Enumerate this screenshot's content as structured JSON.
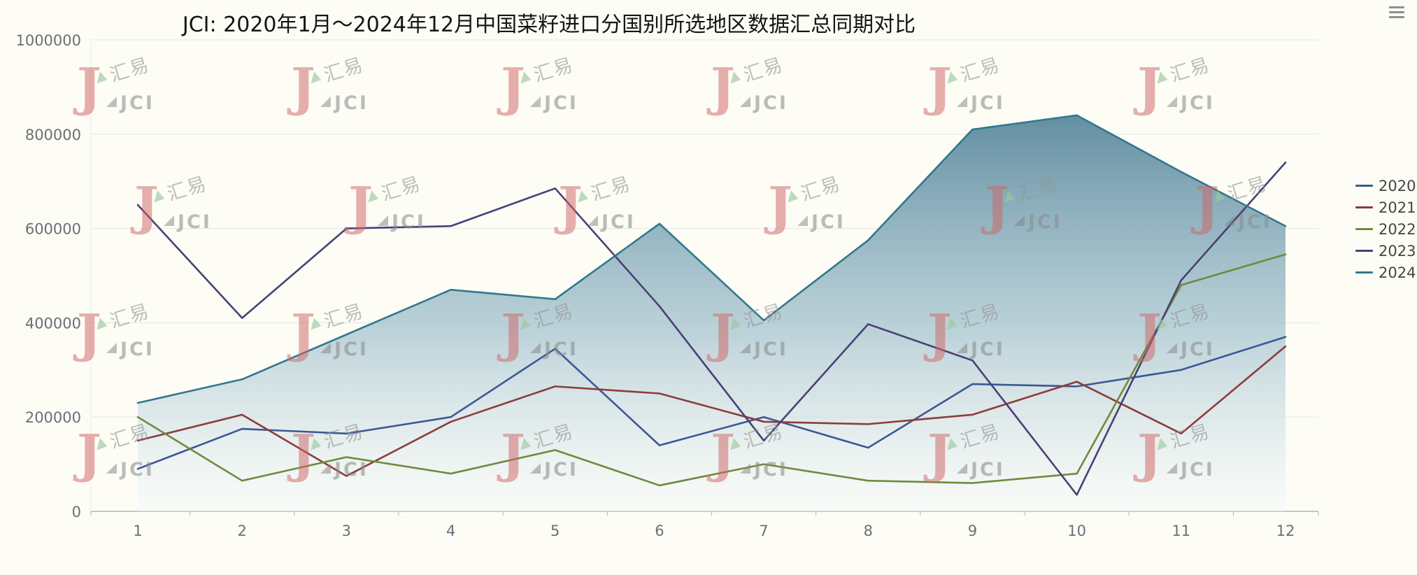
{
  "header": {
    "title": "JCI: 2020年1月～2024年12月中国菜籽进口分国别所选地区数据汇总同期对比"
  },
  "watermark": {
    "brand_cn": "汇易",
    "brand_en": "JCI"
  },
  "colors": {
    "background": "#fdfdf6",
    "gridline": "#e4e4e4",
    "axis_line": "#b3b3b3",
    "tick_label": "#6b6f76",
    "area_gradient_top": "#5e8ba0",
    "area_gradient_mid": "#a3c2ce",
    "area_gradient_bottom": "#f3f8fa"
  },
  "chart_data": {
    "type": "line",
    "title": "JCI: 2020年1月～2024年12月中国菜籽进口分国别所选地区数据汇总同期对比",
    "xlabel": "",
    "ylabel": "",
    "x": [
      1,
      2,
      3,
      4,
      5,
      6,
      7,
      8,
      9,
      10,
      11,
      12
    ],
    "xticks": [
      "1",
      "2",
      "3",
      "4",
      "5",
      "6",
      "7",
      "8",
      "9",
      "10",
      "11",
      "12"
    ],
    "ylim": [
      0,
      1000000
    ],
    "yticks": [
      "0",
      "200000",
      "400000",
      "600000",
      "800000",
      "1000000"
    ],
    "grid": true,
    "legend_position": "right",
    "series": [
      {
        "name": "2020",
        "color": "#3b5894",
        "area": false,
        "values": [
          90000,
          175000,
          165000,
          200000,
          345000,
          140000,
          200000,
          135000,
          270000,
          265000,
          300000,
          370000
        ]
      },
      {
        "name": "2021",
        "color": "#8d3c3c",
        "area": false,
        "values": [
          150000,
          205000,
          75000,
          190000,
          265000,
          250000,
          190000,
          185000,
          205000,
          275000,
          165000,
          350000
        ]
      },
      {
        "name": "2022",
        "color": "#6e8b3c",
        "area": false,
        "values": [
          200000,
          65000,
          115000,
          80000,
          130000,
          55000,
          100000,
          65000,
          60000,
          80000,
          480000,
          545000
        ]
      },
      {
        "name": "2023",
        "color": "#4b3f76",
        "area": false,
        "values": [
          650000,
          410000,
          600000,
          605000,
          685000,
          435000,
          150000,
          397000,
          320000,
          35000,
          490000,
          740000
        ]
      },
      {
        "name": "2024",
        "color": "#31788c",
        "area": true,
        "values": [
          230000,
          280000,
          375000,
          470000,
          450000,
          610000,
          405000,
          575000,
          810000,
          840000,
          720000,
          605000
        ]
      }
    ]
  }
}
